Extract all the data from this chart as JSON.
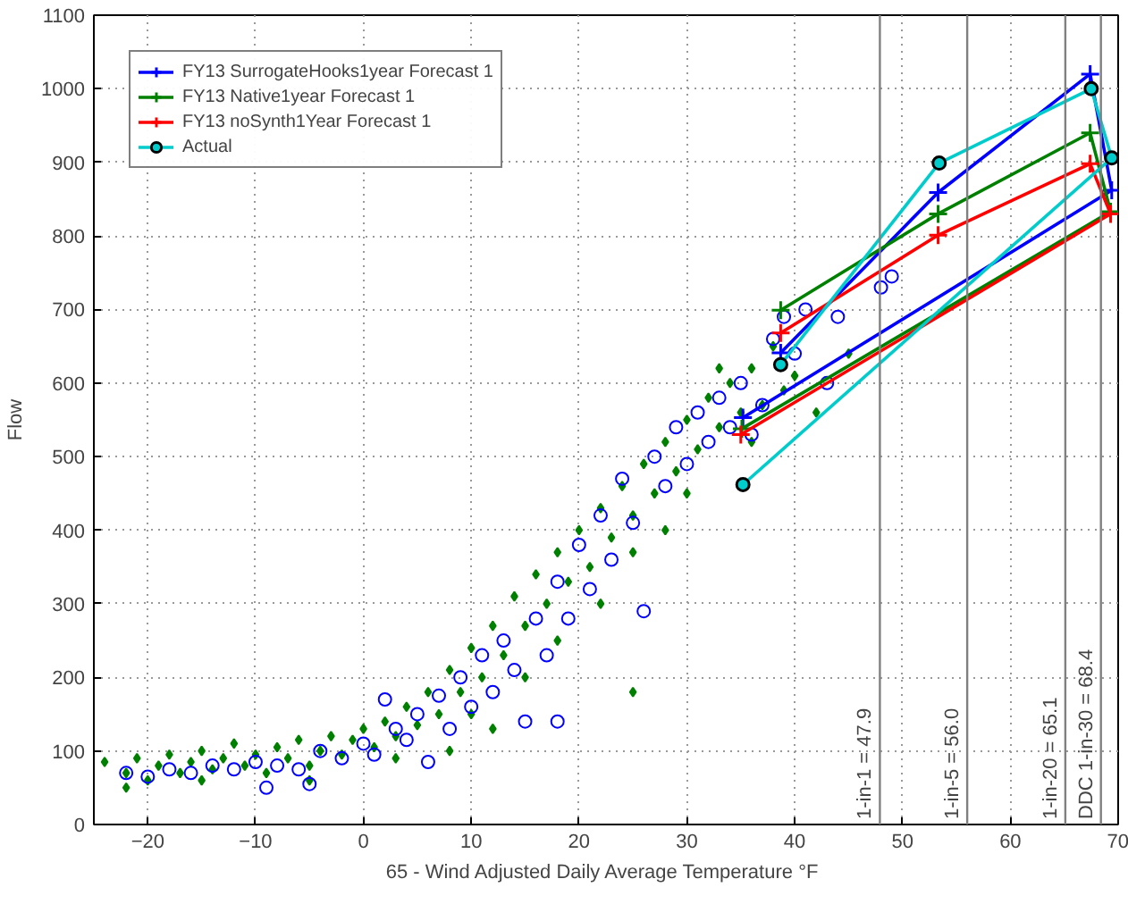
{
  "chart_data": {
    "type": "scatter",
    "xlabel": "65 - Wind Adjusted Daily Average Temperature  °F",
    "ylabel": "Flow",
    "xlim": [
      -25,
      70
    ],
    "xticks": [
      -20,
      -10,
      0,
      10,
      20,
      30,
      40,
      50,
      60,
      70
    ],
    "ylim": [
      0,
      1100
    ],
    "yticks": [
      0,
      100,
      200,
      300,
      400,
      500,
      600,
      700,
      800,
      900,
      1000,
      1100
    ],
    "grid": true,
    "legend": "top left",
    "series": [
      {
        "marker": "diamond",
        "color": "#008000",
        "x": [
          -24,
          -22,
          -21,
          -20,
          -19,
          -18,
          -17,
          -16,
          -15,
          -14,
          -13,
          -12,
          -11,
          -10,
          -9,
          -8,
          -7,
          -6,
          -5,
          -4,
          -3,
          -2,
          -1,
          0,
          1,
          2,
          3,
          4,
          5,
          6,
          7,
          8,
          9,
          10,
          11,
          12,
          13,
          14,
          15,
          16,
          17,
          18,
          19,
          20,
          21,
          22,
          23,
          24,
          25,
          26,
          27,
          28,
          29,
          30,
          31,
          32,
          33,
          34,
          35,
          36,
          37,
          38,
          39,
          40,
          42,
          45,
          12,
          15,
          18,
          22,
          25,
          28,
          8,
          25,
          30,
          33,
          36,
          -22,
          -15,
          -5,
          3,
          10
        ],
        "values": [
          85,
          70,
          90,
          60,
          80,
          95,
          70,
          85,
          100,
          75,
          90,
          110,
          80,
          95,
          70,
          105,
          90,
          115,
          80,
          100,
          120,
          95,
          115,
          130,
          105,
          140,
          120,
          160,
          135,
          180,
          150,
          210,
          180,
          240,
          200,
          270,
          230,
          310,
          270,
          340,
          300,
          370,
          330,
          400,
          350,
          430,
          390,
          460,
          420,
          490,
          450,
          520,
          480,
          550,
          510,
          580,
          540,
          600,
          560,
          620,
          570,
          650,
          590,
          610,
          560,
          640,
          130,
          200,
          250,
          300,
          370,
          400,
          100,
          180,
          450,
          620,
          520,
          50,
          60,
          60,
          90,
          150
        ]
      },
      {
        "marker": "circle",
        "color": "#0000ff",
        "x": [
          -22,
          -20,
          -18,
          -16,
          -14,
          -12,
          -10,
          -9,
          -8,
          -6,
          -5,
          -4,
          -2,
          0,
          1,
          2,
          3,
          4,
          5,
          6,
          7,
          8,
          9,
          10,
          11,
          12,
          13,
          14,
          15,
          16,
          17,
          18,
          18,
          19,
          20,
          21,
          22,
          23,
          24,
          25,
          26,
          27,
          28,
          29,
          30,
          31,
          32,
          33,
          34,
          35,
          36,
          37,
          38,
          39,
          40,
          41,
          44,
          48,
          49,
          43
        ],
        "values": [
          70,
          65,
          75,
          70,
          80,
          75,
          85,
          50,
          80,
          75,
          55,
          100,
          90,
          110,
          95,
          170,
          130,
          115,
          150,
          85,
          175,
          130,
          200,
          160,
          230,
          180,
          250,
          210,
          140,
          280,
          230,
          140,
          330,
          280,
          380,
          320,
          420,
          360,
          470,
          410,
          290,
          500,
          460,
          540,
          490,
          560,
          520,
          580,
          540,
          600,
          530,
          570,
          660,
          690,
          640,
          700,
          690,
          730,
          745,
          600
        ]
      },
      {
        "type": "line",
        "marker": "cross",
        "name": "FY13 SurrogateHooks1year Forecast 1",
        "color": "#0000ff",
        "x": [
          38.7,
          53.3,
          67.4,
          69.4,
          35.2
        ],
        "values": [
          641,
          859,
          1020,
          862,
          553
        ]
      },
      {
        "type": "line",
        "marker": "cross",
        "name": "FY13 Native1year Forecast 1",
        "color": "#008000",
        "x": [
          38.7,
          53.3,
          67.4,
          69.3,
          35.1
        ],
        "values": [
          699,
          830,
          940,
          833,
          538
        ]
      },
      {
        "type": "line",
        "marker": "cross",
        "name": "FY13 noSynth1Year Forecast 1",
        "color": "#ff0000",
        "x": [
          38.7,
          53.3,
          67.4,
          69.3,
          35.0
        ],
        "values": [
          668,
          801,
          898,
          830,
          530
        ]
      },
      {
        "type": "line",
        "marker": "circle",
        "name": "Actual",
        "color": "#00cccc",
        "x": [
          38.7,
          53.4,
          67.5,
          69.4,
          35.2
        ],
        "values": [
          625,
          899,
          1000,
          906,
          462
        ]
      }
    ],
    "ref_lines": [
      {
        "axis": "x",
        "value": 47.9,
        "label": "1-in-1 = 47.9",
        "color": "#808080"
      },
      {
        "axis": "x",
        "value": 56.0,
        "label": "1-in-5 = 56.0",
        "color": "#808080"
      },
      {
        "axis": "x",
        "value": 65.1,
        "label": "1-in-20 = 65.1",
        "color": "#808080"
      },
      {
        "axis": "x",
        "value": 68.4,
        "label": "DDC 1-in-30 = 68.4",
        "color": "#808080"
      }
    ]
  }
}
